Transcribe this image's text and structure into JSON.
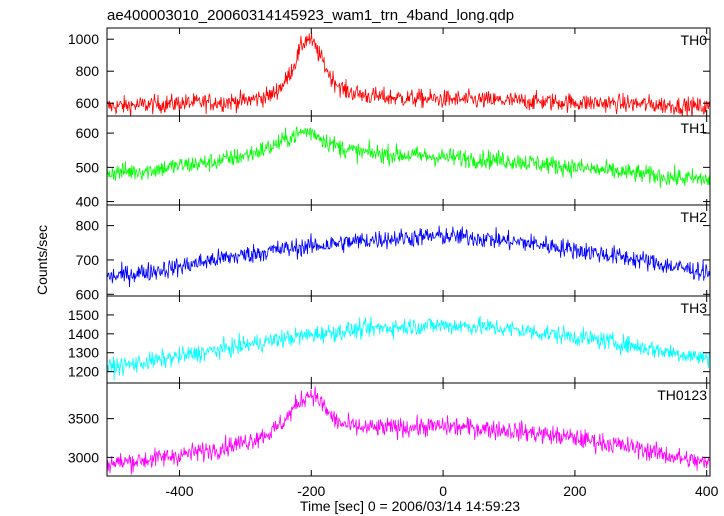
{
  "chart_data": {
    "type": "line",
    "title": "ae400003010_20060314145923_wam1_trn_4band_long.qdp",
    "xlabel": "Time [sec] 0 = 2006/03/14 14:59:23",
    "ylabel": "Counts/sec",
    "xlim": [
      -510,
      405
    ],
    "x_ticks": [
      -400,
      -200,
      0,
      200,
      400
    ],
    "grid": false,
    "legend": "none",
    "panels": [
      {
        "name": "TH0",
        "color": "#ff0000",
        "ylim": [
          520,
          1070
        ],
        "y_ticks": [
          600,
          800,
          1000
        ],
        "series": {
          "x": [
            -510,
            -450,
            -400,
            -350,
            -300,
            -260,
            -240,
            -225,
            -215,
            -205,
            -195,
            -185,
            -170,
            -150,
            -120,
            -100,
            -50,
            0,
            50,
            100,
            150,
            200,
            250,
            300,
            350,
            400
          ],
          "values": [
            580,
            590,
            600,
            605,
            615,
            650,
            730,
            850,
            960,
            1010,
            960,
            880,
            760,
            680,
            650,
            640,
            630,
            625,
            620,
            615,
            610,
            605,
            600,
            595,
            585,
            575
          ]
        }
      },
      {
        "name": "TH1",
        "color": "#00ff00",
        "ylim": [
          390,
          650
        ],
        "y_ticks": [
          400,
          500,
          600
        ],
        "series": {
          "x": [
            -510,
            -450,
            -400,
            -350,
            -300,
            -260,
            -230,
            -210,
            -195,
            -180,
            -160,
            -130,
            -100,
            -50,
            0,
            50,
            100,
            150,
            200,
            250,
            300,
            350,
            400
          ],
          "values": [
            485,
            490,
            505,
            515,
            535,
            560,
            590,
            605,
            600,
            580,
            560,
            545,
            540,
            535,
            530,
            525,
            520,
            510,
            500,
            490,
            480,
            470,
            465
          ]
        }
      },
      {
        "name": "TH2",
        "color": "#0000ff",
        "ylim": [
          595,
          860
        ],
        "y_ticks": [
          600,
          700,
          800
        ],
        "series": {
          "x": [
            -510,
            -450,
            -400,
            -350,
            -300,
            -250,
            -200,
            -150,
            -100,
            -50,
            0,
            50,
            100,
            150,
            200,
            250,
            300,
            350,
            400
          ],
          "values": [
            650,
            665,
            680,
            700,
            715,
            730,
            740,
            750,
            760,
            765,
            770,
            765,
            755,
            745,
            730,
            715,
            700,
            680,
            665
          ]
        }
      },
      {
        "name": "TH3",
        "color": "#00ffff",
        "ylim": [
          1140,
          1600
        ],
        "y_ticks": [
          1200,
          1300,
          1400,
          1500
        ],
        "series": {
          "x": [
            -510,
            -450,
            -400,
            -350,
            -300,
            -250,
            -200,
            -150,
            -100,
            -50,
            0,
            50,
            100,
            150,
            200,
            250,
            300,
            350,
            400
          ],
          "values": [
            1220,
            1250,
            1280,
            1310,
            1340,
            1370,
            1395,
            1415,
            1430,
            1440,
            1445,
            1440,
            1425,
            1405,
            1385,
            1360,
            1330,
            1300,
            1270
          ]
        }
      },
      {
        "name": "TH0123",
        "color": "#ff00ff",
        "ylim": [
          2760,
          3960
        ],
        "y_ticks": [
          3000,
          3500
        ],
        "series": {
          "x": [
            -510,
            -450,
            -400,
            -350,
            -300,
            -260,
            -240,
            -225,
            -210,
            -200,
            -190,
            -175,
            -160,
            -140,
            -120,
            -100,
            -50,
            0,
            50,
            100,
            150,
            200,
            250,
            300,
            350,
            400
          ],
          "values": [
            2920,
            2970,
            3030,
            3100,
            3200,
            3330,
            3480,
            3650,
            3780,
            3830,
            3760,
            3580,
            3450,
            3400,
            3380,
            3380,
            3390,
            3400,
            3380,
            3350,
            3300,
            3250,
            3180,
            3110,
            3010,
            2920
          ]
        }
      }
    ]
  }
}
